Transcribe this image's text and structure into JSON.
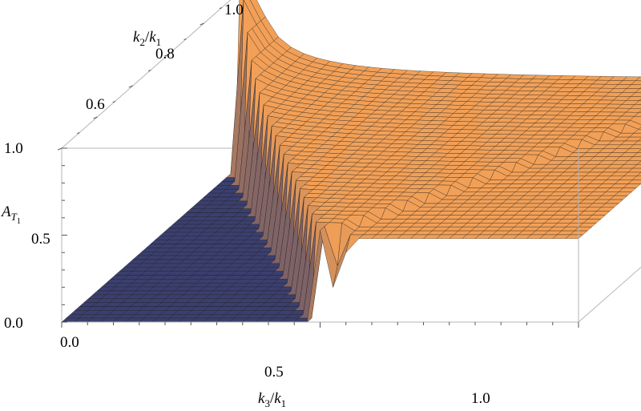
{
  "chart_data": {
    "type": "surface3d",
    "title": "",
    "x_axis": {
      "label_var": "k",
      "label_num_sub": "3",
      "label_den_sub": "1",
      "range": [
        0.0,
        1.0
      ],
      "ticks": [
        "0.0",
        "0.5",
        "1.0"
      ]
    },
    "y_axis": {
      "label_var": "k",
      "label_num_sub": "2",
      "label_den_sub": "1",
      "range": [
        0.5,
        1.0
      ],
      "ticks": [
        "0.6",
        "0.8",
        "1.0"
      ]
    },
    "z_axis": {
      "label_var": "A",
      "label_sub": "T",
      "label_subsub": "1",
      "range": [
        0.0,
        1.0
      ],
      "ticks": [
        "0.0",
        "0.5",
        "1.0"
      ]
    },
    "surface": {
      "description_rule": "A_T1 is 0 where x + y < 1, and rises to a plateau of about 0.48 along x = y; peak of 1.0 at x -> 0, y -> 1",
      "plateau_value": 0.48,
      "peak_value": 1.0,
      "grid_resolution": 40
    },
    "colors": {
      "low": "#3b3f6e",
      "high": "#f2a057",
      "box": "#b5b5b5"
    }
  }
}
